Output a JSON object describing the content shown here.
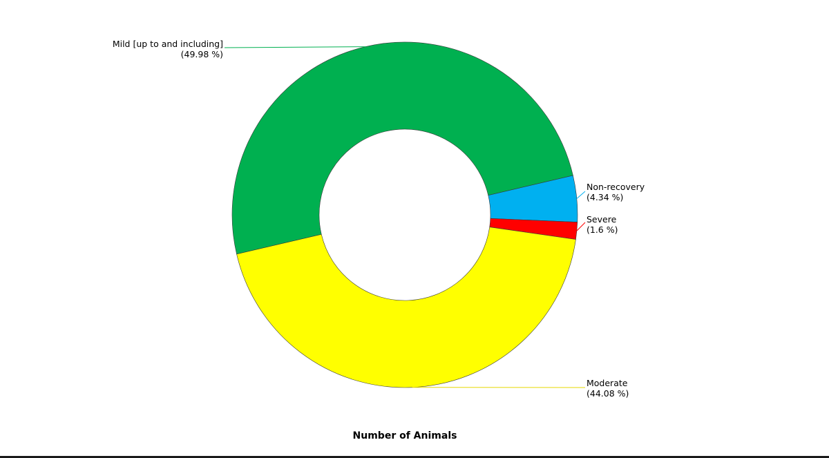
{
  "chart_data": {
    "type": "pie",
    "donut": true,
    "title": "Number of Animals",
    "legend": "none",
    "slices": [
      {
        "name": "Non-recovery",
        "value": 4.34,
        "percent_label": "(4.34 %)",
        "color": "#00b0f0"
      },
      {
        "name": "Severe",
        "value": 1.6,
        "percent_label": "(1.6 %)",
        "color": "#ff0000"
      },
      {
        "name": "Moderate",
        "value": 44.08,
        "percent_label": "(44.08 %)",
        "color": "#ffff00"
      },
      {
        "name": "Mild [up to and including]",
        "value": 49.98,
        "percent_label": "(49.98 %)",
        "color": "#00b050"
      }
    ]
  }
}
